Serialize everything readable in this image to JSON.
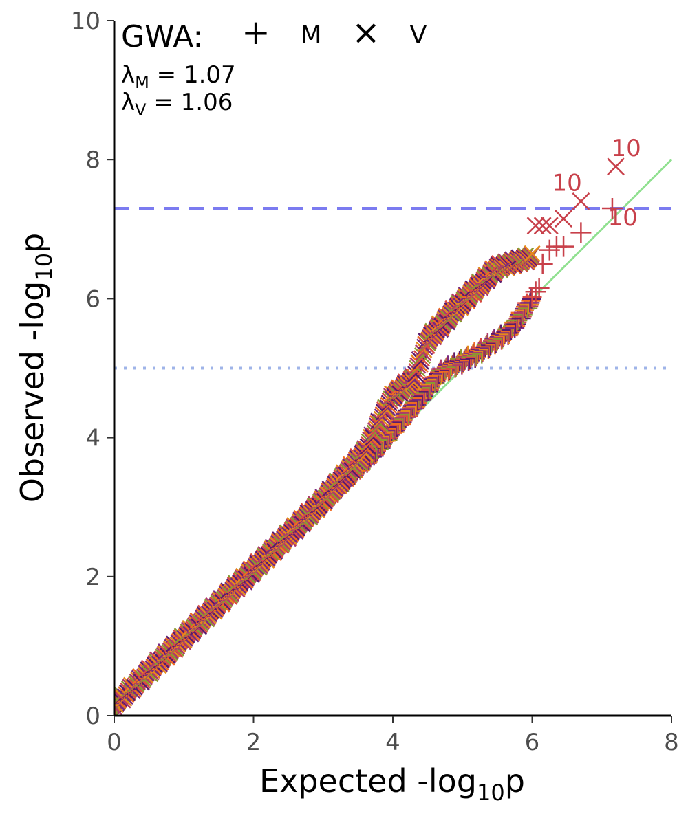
{
  "chart_data": {
    "type": "scatter",
    "title": "",
    "xlabel": "Expected -log",
    "xlabel_sub": "10",
    "xlabel_end": "p",
    "ylabel": "Observed -log",
    "ylabel_sub": "10",
    "ylabel_end": "p",
    "xlim": [
      0,
      8
    ],
    "ylim": [
      0,
      10
    ],
    "x_ticks": [
      "0",
      "2",
      "4",
      "6",
      "8"
    ],
    "y_ticks": [
      "0",
      "2",
      "4",
      "6",
      "8",
      "10"
    ],
    "grid": false,
    "legend": {
      "title": "GWA:",
      "entries": [
        {
          "symbol": "+",
          "label": "M"
        },
        {
          "symbol": "×",
          "label": "V"
        }
      ],
      "placement": "top-left"
    },
    "lambda_annotations": [
      {
        "symbol": "λ",
        "sub": "M",
        "text": " = 1.07"
      },
      {
        "symbol": "λ",
        "sub": "V",
        "text": " = 1.06"
      }
    ],
    "reference_lines": [
      {
        "type": "diagonal",
        "from": [
          0,
          0
        ],
        "to": [
          8,
          8
        ],
        "color": "#90e090"
      },
      {
        "type": "hline",
        "y": 7.3,
        "style": "dashed",
        "color": "#7b7bf0"
      },
      {
        "type": "hline",
        "y": 5.0,
        "style": "dotted",
        "color": "#9fb4e8"
      }
    ],
    "series": [
      {
        "name": "M",
        "marker": "+",
        "curve": [
          [
            0,
            0.12
          ],
          [
            1,
            1.1
          ],
          [
            2,
            2.08
          ],
          [
            3,
            3.05
          ],
          [
            3.7,
            3.75
          ],
          [
            4.3,
            4.45
          ],
          [
            4.7,
            4.95
          ],
          [
            5.2,
            5.2
          ],
          [
            5.7,
            5.55
          ],
          [
            6.0,
            6.0
          ]
        ],
        "tail_points": [
          [
            6.05,
            6.1
          ],
          [
            6.1,
            6.15
          ],
          [
            6.15,
            6.5
          ],
          [
            6.25,
            6.7
          ],
          [
            6.35,
            6.75
          ],
          [
            6.45,
            6.75
          ],
          [
            6.7,
            6.95
          ],
          [
            7.15,
            7.3
          ]
        ]
      },
      {
        "name": "V",
        "marker": "×",
        "curve": [
          [
            0,
            0.15
          ],
          [
            1,
            1.12
          ],
          [
            2,
            2.1
          ],
          [
            3,
            3.1
          ],
          [
            3.6,
            3.8
          ],
          [
            4.0,
            4.6
          ],
          [
            4.3,
            4.85
          ],
          [
            4.5,
            5.4
          ],
          [
            4.9,
            5.85
          ],
          [
            5.3,
            6.25
          ],
          [
            5.5,
            6.45
          ],
          [
            6.0,
            6.6
          ]
        ],
        "tail_points": [
          [
            6.05,
            7.05
          ],
          [
            6.15,
            7.05
          ],
          [
            6.25,
            7.05
          ],
          [
            6.45,
            7.15
          ],
          [
            6.7,
            7.4
          ],
          [
            7.2,
            7.9
          ]
        ]
      }
    ],
    "point_labels": [
      {
        "x": 7.35,
        "y": 8.05,
        "text": "10"
      },
      {
        "x": 6.5,
        "y": 7.55,
        "text": "10"
      },
      {
        "x": 7.3,
        "y": 7.05,
        "text": "10"
      }
    ],
    "colors": {
      "highlight": "#c8404a",
      "palette": [
        "#5a1a6e",
        "#7a2a7e",
        "#b03a6a",
        "#d94a45",
        "#f06a20",
        "#e58a1c",
        "#8a9a30"
      ],
      "axis": "#000000",
      "tick_text": "#4d4d4d"
    }
  }
}
